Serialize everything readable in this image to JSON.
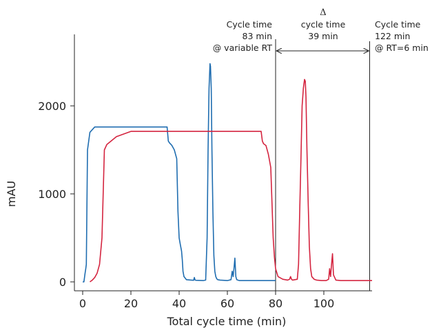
{
  "chart_data": {
    "type": "line",
    "title": "",
    "xlabel": "Total cycle time (min)",
    "ylabel": "mAU",
    "xlim": [
      -4,
      120
    ],
    "ylim": [
      -120,
      2700
    ],
    "x_ticks": [
      0,
      20,
      40,
      60,
      80,
      100
    ],
    "y_ticks": [
      0,
      1000,
      2000
    ],
    "grid": false,
    "colors": {
      "blue": "#1f6db0",
      "red": "#d4243f",
      "axis": "#222222"
    },
    "series": [
      {
        "color": "#1f6db0",
        "x": [
          0,
          0.5,
          1,
          1.3,
          1.5,
          2,
          3,
          5,
          10,
          20,
          34,
          35,
          35.5,
          36,
          37,
          38,
          39,
          39.5,
          40,
          40.5,
          41,
          41.3,
          41.6,
          42,
          43,
          45,
          46,
          46.3,
          46.6,
          47,
          50,
          51,
          51.6,
          52,
          52.4,
          52.8,
          53,
          53.3,
          53.6,
          54,
          54.4,
          54.8,
          55.2,
          55.6,
          56,
          57,
          60,
          61.5,
          62,
          62.4,
          62.8,
          63.1,
          63.5,
          63.9,
          64.3,
          65,
          70,
          80
        ],
        "y": [
          0,
          0,
          100,
          150,
          200,
          1500,
          1700,
          1760,
          1760,
          1760,
          1760,
          1760,
          1600,
          1580,
          1550,
          1500,
          1400,
          800,
          500,
          420,
          350,
          250,
          120,
          60,
          25,
          20,
          18,
          50,
          20,
          18,
          15,
          20,
          500,
          1500,
          2200,
          2480,
          2450,
          2200,
          1500,
          800,
          300,
          120,
          60,
          35,
          25,
          20,
          15,
          25,
          120,
          60,
          170,
          270,
          60,
          25,
          20,
          15,
          15,
          15
        ]
      },
      {
        "color": "#d4243f",
        "x": [
          3,
          4,
          5,
          6,
          7,
          8,
          9,
          10,
          14,
          20,
          40,
          60,
          73,
          74,
          74.5,
          75,
          76,
          77,
          78,
          79,
          79.5,
          80,
          81,
          83,
          85,
          85.8,
          86.2,
          86.6,
          87,
          89,
          89.5,
          90,
          90.5,
          91,
          91.5,
          92,
          92.3,
          92.6,
          93,
          93.5,
          94,
          94.5,
          95,
          96,
          97,
          99,
          101,
          102,
          102.4,
          102.8,
          103.2,
          103.6,
          104,
          105,
          107,
          110,
          115,
          120
        ],
        "y": [
          0,
          20,
          50,
          100,
          200,
          500,
          1500,
          1560,
          1650,
          1710,
          1710,
          1710,
          1710,
          1710,
          1600,
          1570,
          1550,
          1450,
          1300,
          500,
          280,
          150,
          60,
          30,
          20,
          30,
          60,
          30,
          20,
          30,
          200,
          800,
          1400,
          2000,
          2200,
          2300,
          2280,
          2100,
          1500,
          900,
          400,
          150,
          60,
          30,
          20,
          15,
          15,
          30,
          150,
          60,
          200,
          320,
          80,
          20,
          15,
          15,
          15,
          15
        ]
      }
    ],
    "markers": [
      80,
      119
    ],
    "annotations": [
      {
        "id": "left",
        "lines": [
          "Cycle time",
          "83 min",
          "@ variable RT"
        ]
      },
      {
        "id": "delta",
        "symbol": "Δ",
        "lines": [
          "cycle time",
          "39 min"
        ]
      },
      {
        "id": "right",
        "lines": [
          "Cycle time",
          "122 min",
          "@ RT=6 min"
        ]
      }
    ]
  }
}
